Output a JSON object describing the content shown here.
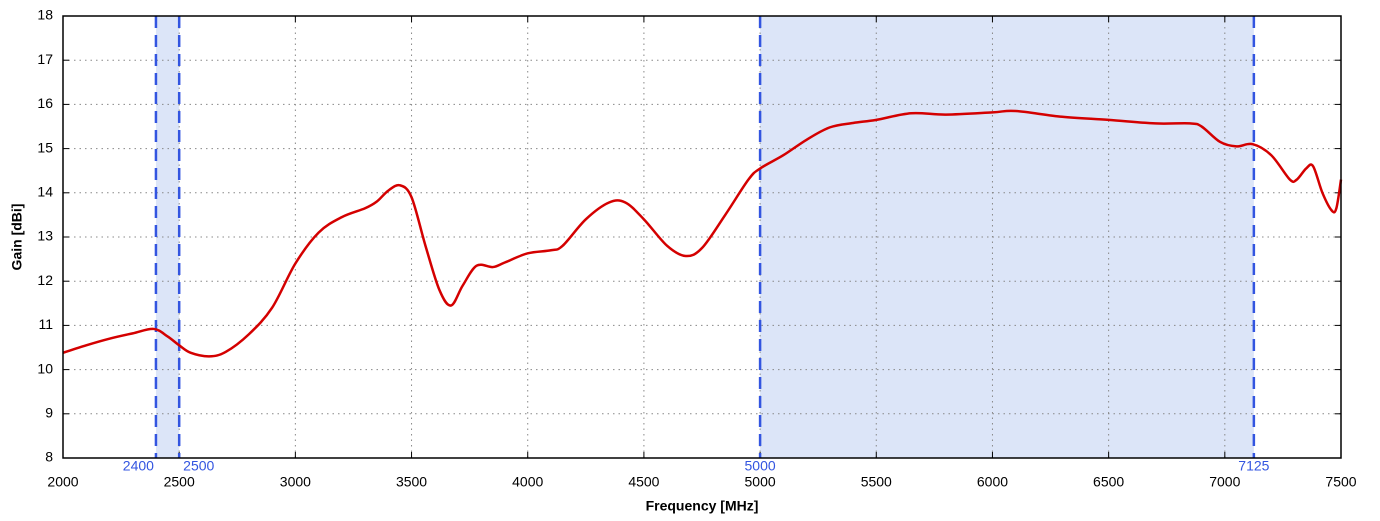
{
  "chart_data": {
    "type": "line",
    "xlabel": "Frequency [MHz]",
    "ylabel": "Gain [dBi]",
    "x": [
      2000,
      2100,
      2200,
      2300,
      2390,
      2450,
      2500,
      2550,
      2630,
      2700,
      2800,
      2900,
      3000,
      3100,
      3200,
      3300,
      3350,
      3400,
      3450,
      3500,
      3560,
      3620,
      3670,
      3720,
      3780,
      3850,
      3900,
      4000,
      4100,
      4150,
      4250,
      4350,
      4420,
      4500,
      4600,
      4680,
      4750,
      4850,
      4950,
      5000,
      5100,
      5200,
      5300,
      5400,
      5500,
      5650,
      5800,
      6000,
      6100,
      6300,
      6500,
      6700,
      6850,
      6900,
      6980,
      7050,
      7120,
      7200,
      7280,
      7310,
      7350,
      7380,
      7420,
      7460,
      7480,
      7500
    ],
    "series": [
      {
        "name": "Gain",
        "color": "#d40000",
        "values": [
          10.38,
          10.55,
          10.7,
          10.82,
          10.92,
          10.75,
          10.55,
          10.38,
          10.3,
          10.4,
          10.8,
          11.4,
          12.4,
          13.1,
          13.45,
          13.65,
          13.8,
          14.05,
          14.17,
          13.9,
          12.8,
          11.8,
          11.45,
          11.9,
          12.35,
          12.32,
          12.42,
          12.63,
          12.7,
          12.8,
          13.4,
          13.78,
          13.78,
          13.4,
          12.8,
          12.57,
          12.75,
          13.5,
          14.3,
          14.55,
          14.85,
          15.2,
          15.48,
          15.58,
          15.65,
          15.8,
          15.77,
          15.82,
          15.85,
          15.72,
          15.65,
          15.57,
          15.57,
          15.5,
          15.15,
          15.05,
          15.1,
          14.85,
          14.3,
          14.3,
          14.55,
          14.6,
          14.0,
          13.6,
          13.65,
          14.3
        ]
      }
    ],
    "bands": [
      {
        "from": 2400,
        "to": 2500
      },
      {
        "from": 5000,
        "to": 7125
      }
    ],
    "band_color": "#dce5f8",
    "band_line_color": "#3355e0",
    "xlim": [
      2000,
      7500
    ],
    "xticks": [
      2000,
      2500,
      3000,
      3500,
      4000,
      4500,
      5000,
      5500,
      6000,
      6500,
      7000,
      7500
    ],
    "ylim": [
      8,
      18
    ],
    "yticks": [
      8,
      9,
      10,
      11,
      12,
      13,
      14,
      15,
      16,
      17,
      18
    ],
    "grid": true
  }
}
